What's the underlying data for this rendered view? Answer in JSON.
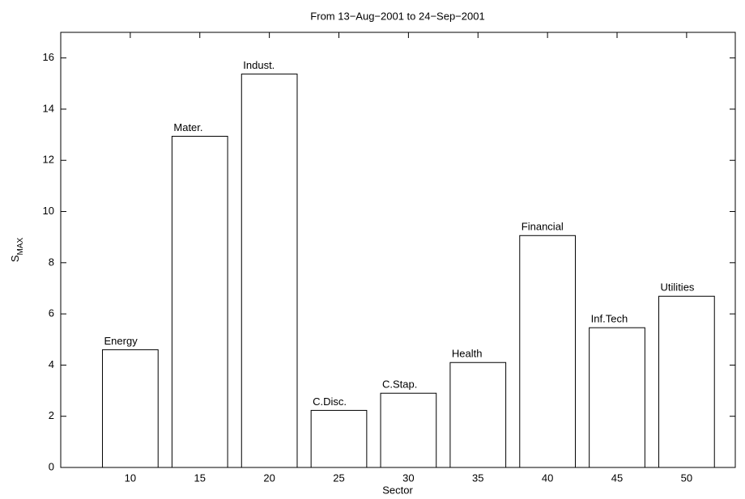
{
  "chart_data": {
    "type": "bar",
    "title": "From 13−Aug−2001 to 24−Sep−2001",
    "xlabel": "Sector",
    "ylabel": {
      "text": "S",
      "subscript": "MAX"
    },
    "x": [
      10,
      15,
      20,
      25,
      30,
      35,
      40,
      45,
      50
    ],
    "labels": [
      "Energy",
      "Mater.",
      "Indust.",
      "C.Disc.",
      "C.Stap.",
      "Health",
      "Financial",
      "Inf.Tech",
      "Utilities"
    ],
    "values": [
      4.6,
      12.94,
      15.37,
      2.23,
      2.9,
      4.1,
      9.06,
      5.46,
      6.69
    ],
    "color": "#ffffff",
    "edge_color": "#000000",
    "xlim": [
      5,
      53.5
    ],
    "ylim": [
      0,
      17
    ],
    "xticks": [
      10,
      15,
      20,
      25,
      30,
      35,
      40,
      45,
      50
    ],
    "yticks": [
      0,
      2,
      4,
      6,
      8,
      10,
      12,
      14,
      16
    ],
    "grid": false
  }
}
